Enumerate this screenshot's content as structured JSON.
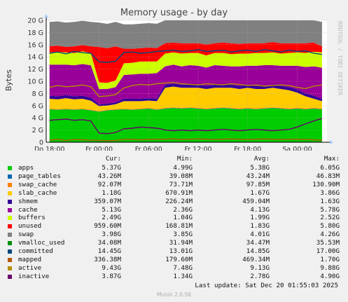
{
  "title": "Memory usage - by day",
  "side_label": "RRDTOOL / TOBI OETIKER",
  "chart_data": {
    "type": "area",
    "title": "Memory usage - by day",
    "ylabel": "Bytes",
    "ylim": [
      0,
      20
    ],
    "y_unit": "G",
    "y_ticks": [
      "0",
      "2 G",
      "4 G",
      "6 G",
      "8 G",
      "10 G",
      "12 G",
      "14 G",
      "16 G",
      "18 G",
      "20 G"
    ],
    "y_tick_values": [
      0,
      2,
      4,
      6,
      8,
      10,
      12,
      14,
      16,
      18,
      20
    ],
    "x_ticks": [
      "Do 18:00",
      "Fr 00:00",
      "Fr 06:00",
      "Fr 12:00",
      "Fr 18:00",
      "Sa 00:00"
    ],
    "x_tick_positions_hours": [
      0,
      6,
      12,
      18,
      24,
      30
    ],
    "x_range_hours": [
      -0.4,
      33.6
    ],
    "grid": true,
    "stacked": true,
    "x": [
      0,
      1,
      2,
      3,
      4,
      5,
      6,
      7,
      8,
      9,
      10,
      11,
      12,
      13,
      14,
      15,
      16,
      17,
      18,
      19,
      20,
      21,
      22,
      23,
      24,
      25,
      26,
      27,
      28,
      29,
      30,
      31,
      32,
      33
    ],
    "series": [
      {
        "name": "apps",
        "color": "#00cc00",
        "values": [
          5.4,
          5.3,
          5.4,
          5.3,
          5.4,
          5.2,
          5.0,
          5.2,
          5.3,
          5.4,
          5.3,
          5.4,
          5.5,
          5.3,
          5.5,
          5.6,
          5.5,
          5.6,
          5.5,
          5.4,
          5.5,
          5.6,
          5.5,
          5.4,
          5.5,
          5.4,
          5.5,
          5.6,
          5.5,
          5.4,
          5.5,
          5.4,
          5.5,
          5.4
        ]
      },
      {
        "name": "page_tables",
        "color": "#0066b3",
        "values": [
          0.04,
          0.04,
          0.04,
          0.04,
          0.04,
          0.04,
          0.04,
          0.04,
          0.04,
          0.04,
          0.04,
          0.04,
          0.04,
          0.04,
          0.04,
          0.04,
          0.04,
          0.04,
          0.04,
          0.04,
          0.04,
          0.04,
          0.04,
          0.04,
          0.04,
          0.04,
          0.04,
          0.04,
          0.04,
          0.04,
          0.04,
          0.04,
          0.04,
          0.04
        ]
      },
      {
        "name": "swap_cache",
        "color": "#ff8000",
        "values": [
          0.09,
          0.09,
          0.09,
          0.09,
          0.09,
          0.09,
          0.08,
          0.09,
          0.09,
          0.1,
          0.09,
          0.1,
          0.1,
          0.1,
          0.1,
          0.1,
          0.1,
          0.1,
          0.1,
          0.1,
          0.1,
          0.1,
          0.1,
          0.1,
          0.1,
          0.1,
          0.1,
          0.1,
          0.1,
          0.1,
          0.1,
          0.1,
          0.1,
          0.09
        ]
      },
      {
        "name": "slab_cache",
        "color": "#ffcc00",
        "values": [
          1.6,
          1.6,
          1.7,
          1.6,
          1.6,
          1.5,
          0.8,
          0.7,
          0.8,
          1.2,
          1.3,
          1.2,
          1.2,
          1.3,
          3.3,
          3.4,
          3.3,
          3.2,
          3.3,
          3.2,
          3.3,
          3.2,
          3.3,
          3.2,
          3.3,
          3.2,
          3.1,
          3.2,
          3.1,
          3.0,
          2.5,
          2.0,
          1.5,
          1.2
        ]
      },
      {
        "name": "shmem",
        "color": "#330099",
        "values": [
          0.5,
          0.5,
          0.5,
          0.5,
          0.5,
          0.5,
          0.3,
          0.3,
          0.3,
          0.4,
          0.4,
          0.4,
          0.4,
          0.4,
          0.5,
          0.5,
          0.5,
          0.5,
          0.5,
          0.5,
          0.5,
          0.5,
          0.5,
          0.5,
          0.5,
          0.5,
          0.5,
          0.5,
          0.5,
          0.5,
          0.5,
          0.5,
          0.5,
          0.4
        ]
      },
      {
        "name": "cache",
        "color": "#990099",
        "values": [
          5.1,
          5.2,
          5.0,
          5.1,
          5.2,
          5.3,
          2.5,
          2.4,
          2.5,
          3.9,
          4.0,
          4.1,
          4.0,
          4.2,
          3.0,
          3.1,
          3.0,
          3.2,
          3.1,
          3.0,
          3.2,
          3.1,
          3.0,
          3.2,
          3.1,
          3.3,
          3.4,
          3.2,
          3.3,
          3.5,
          3.9,
          4.3,
          4.8,
          5.1
        ]
      },
      {
        "name": "buffers",
        "color": "#ccff00",
        "values": [
          2.0,
          2.1,
          2.0,
          2.0,
          2.1,
          2.0,
          1.1,
          1.0,
          1.1,
          1.9,
          1.9,
          2.0,
          2.0,
          1.9,
          2.1,
          2.0,
          2.1,
          2.0,
          2.1,
          2.0,
          2.0,
          2.1,
          2.0,
          2.1,
          2.0,
          2.1,
          2.0,
          2.1,
          2.0,
          2.1,
          2.2,
          2.3,
          2.4,
          2.5
        ]
      },
      {
        "name": "unused",
        "color": "#ff0000",
        "values": [
          1.0,
          1.0,
          0.9,
          1.1,
          1.0,
          1.1,
          5.8,
          5.7,
          5.6,
          2.4,
          2.3,
          2.2,
          2.3,
          2.2,
          1.7,
          1.6,
          1.7,
          1.6,
          1.6,
          1.8,
          1.6,
          1.7,
          1.8,
          1.6,
          1.7,
          1.6,
          1.6,
          1.7,
          1.7,
          1.6,
          1.5,
          1.6,
          1.5,
          1.0
        ]
      },
      {
        "name": "swap",
        "color": "#808080",
        "values": [
          4.0,
          4.0,
          4.0,
          4.0,
          4.0,
          4.0,
          4.0,
          4.0,
          4.0,
          4.0,
          4.0,
          4.0,
          4.0,
          4.0,
          4.0,
          4.0,
          4.0,
          4.0,
          4.0,
          4.0,
          4.0,
          4.0,
          4.0,
          4.0,
          4.0,
          4.0,
          4.0,
          4.0,
          4.0,
          4.0,
          4.0,
          4.0,
          4.0,
          4.0
        ]
      }
    ],
    "line_series": [
      {
        "name": "vmalloc_used",
        "color": "#008f00",
        "values": [
          0.034,
          0.034,
          0.034,
          0.034,
          0.034,
          0.034,
          0.034,
          0.034,
          0.034,
          0.034,
          0.034,
          0.034,
          0.034,
          0.034,
          0.034,
          0.034,
          0.034,
          0.034,
          0.034,
          0.034,
          0.034,
          0.034,
          0.034,
          0.034,
          0.034,
          0.034,
          0.034,
          0.034,
          0.034,
          0.034,
          0.034,
          0.034,
          0.034,
          0.034
        ]
      },
      {
        "name": "committed",
        "color": "#00487d",
        "values": [
          14.6,
          14.8,
          14.5,
          14.9,
          14.7,
          14.6,
          13.2,
          13.1,
          13.3,
          14.7,
          14.8,
          14.6,
          14.7,
          14.9,
          15.0,
          15.1,
          14.9,
          15.0,
          15.2,
          14.9,
          15.0,
          15.1,
          14.8,
          15.0,
          15.1,
          14.9,
          15.2,
          15.0,
          14.8,
          15.1,
          14.9,
          15.0,
          14.6,
          14.4
        ]
      },
      {
        "name": "mapped",
        "color": "#b35a00",
        "values": [
          0.35,
          0.5,
          0.3,
          0.45,
          0.4,
          0.35,
          0.3,
          0.25,
          0.3,
          0.45,
          0.5,
          0.4,
          0.45,
          0.5,
          0.5,
          0.55,
          0.45,
          0.5,
          0.55,
          0.5,
          0.45,
          0.5,
          0.55,
          0.5,
          0.45,
          0.5,
          0.55,
          0.5,
          0.45,
          0.5,
          0.5,
          0.45,
          0.4,
          0.35
        ]
      },
      {
        "name": "active",
        "color": "#b38f00",
        "values": [
          9.0,
          9.3,
          9.1,
          9.2,
          9.4,
          9.1,
          7.5,
          7.6,
          7.8,
          8.9,
          9.3,
          9.5,
          9.4,
          9.6,
          9.7,
          9.8,
          9.6,
          9.5,
          9.4,
          9.6,
          9.5,
          9.4,
          9.6,
          9.5,
          9.3,
          9.4,
          9.2,
          9.3,
          9.4,
          9.3,
          9.0,
          8.8,
          9.2,
          9.4
        ]
      },
      {
        "name": "inactive",
        "color": "#6b006b",
        "values": [
          3.6,
          3.7,
          3.8,
          3.6,
          3.7,
          3.5,
          1.5,
          1.4,
          1.6,
          2.2,
          2.3,
          2.5,
          2.4,
          2.3,
          2.0,
          1.9,
          2.0,
          1.9,
          2.0,
          1.9,
          2.0,
          2.1,
          2.0,
          1.9,
          2.0,
          2.1,
          2.0,
          1.9,
          2.0,
          2.1,
          2.5,
          3.0,
          3.5,
          3.9
        ]
      }
    ]
  },
  "legend": {
    "headers": {
      "cur": "Cur:",
      "min": "Min:",
      "avg": "Avg:",
      "max": "Max:"
    },
    "rows": [
      {
        "name": "apps",
        "color": "#00cc00",
        "cur": "5.37G",
        "min": "4.99G",
        "avg": "5.38G",
        "max": "6.05G"
      },
      {
        "name": "page_tables",
        "color": "#0066b3",
        "cur": "43.26M",
        "min": "39.08M",
        "avg": "43.24M",
        "max": "46.83M"
      },
      {
        "name": "swap_cache",
        "color": "#ff8000",
        "cur": "92.07M",
        "min": "73.71M",
        "avg": "97.85M",
        "max": "130.90M"
      },
      {
        "name": "slab_cache",
        "color": "#ffcc00",
        "cur": "1.18G",
        "min": "670.91M",
        "avg": "1.67G",
        "max": "3.86G"
      },
      {
        "name": "shmem",
        "color": "#330099",
        "cur": "359.07M",
        "min": "226.24M",
        "avg": "459.04M",
        "max": "1.63G"
      },
      {
        "name": "cache",
        "color": "#990099",
        "cur": "5.13G",
        "min": "2.36G",
        "avg": "4.13G",
        "max": "5.78G"
      },
      {
        "name": "buffers",
        "color": "#ccff00",
        "cur": "2.49G",
        "min": "1.04G",
        "avg": "1.99G",
        "max": "2.52G"
      },
      {
        "name": "unused",
        "color": "#ff0000",
        "cur": "959.60M",
        "min": "168.81M",
        "avg": "1.83G",
        "max": "5.80G"
      },
      {
        "name": "swap",
        "color": "#808080",
        "cur": "3.98G",
        "min": "3.85G",
        "avg": "4.01G",
        "max": "4.26G"
      },
      {
        "name": "vmalloc_used",
        "color": "#008f00",
        "cur": "34.08M",
        "min": "31.94M",
        "avg": "34.47M",
        "max": "35.53M"
      },
      {
        "name": "committed",
        "color": "#00487d",
        "cur": "14.45G",
        "min": "13.01G",
        "avg": "14.85G",
        "max": "17.00G"
      },
      {
        "name": "mapped",
        "color": "#b35a00",
        "cur": "336.38M",
        "min": "179.60M",
        "avg": "469.34M",
        "max": "1.70G"
      },
      {
        "name": "active",
        "color": "#b38f00",
        "cur": "9.43G",
        "min": "7.48G",
        "avg": "9.13G",
        "max": "9.88G"
      },
      {
        "name": "inactive",
        "color": "#6b006b",
        "cur": "3.87G",
        "min": "1.34G",
        "avg": "2.78G",
        "max": "4.90G"
      }
    ]
  },
  "footer": {
    "last_update": "Last update: Sat Dec 20 01:55:03 2025",
    "version": "Munin 2.0.56"
  }
}
